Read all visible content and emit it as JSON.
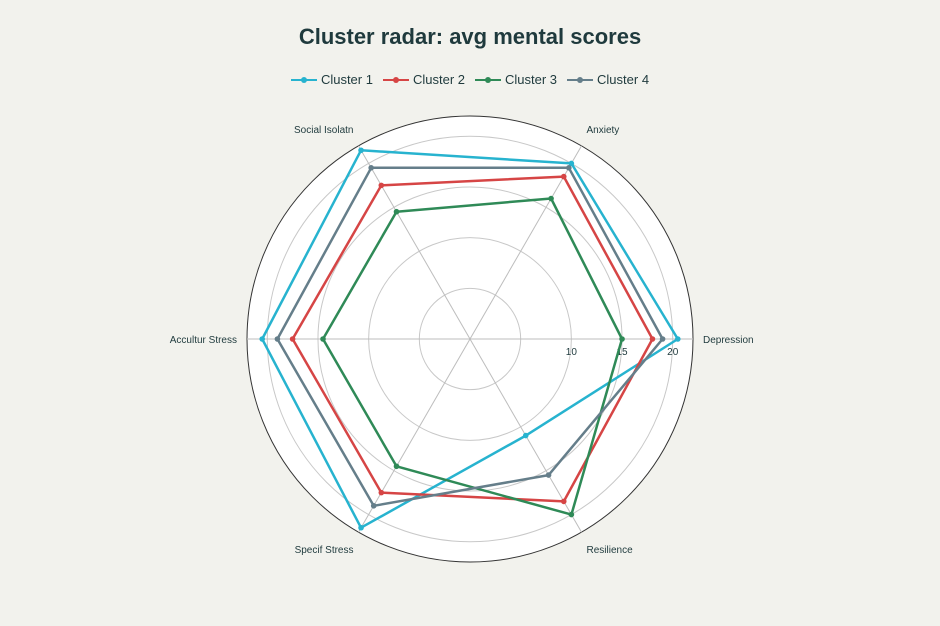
{
  "chart_data": {
    "type": "radar",
    "title": "Cluster radar: avg mental scores",
    "axes": [
      "Depression",
      "Anxiety",
      "Social Isolatn",
      "Accultur Stress",
      "Specif Stress",
      "Resilience"
    ],
    "radial_range": [
      0,
      22
    ],
    "radial_ticks": [
      10,
      15,
      20
    ],
    "legend_position": "top",
    "series": [
      {
        "name": "Cluster 1",
        "color": "#27b3cf",
        "values": [
          20.5,
          20.0,
          21.5,
          20.5,
          21.5,
          11.0
        ]
      },
      {
        "name": "Cluster 2",
        "color": "#d64545",
        "values": [
          18.0,
          18.5,
          17.5,
          17.5,
          17.5,
          18.5
        ]
      },
      {
        "name": "Cluster 3",
        "color": "#2f8a57",
        "values": [
          15.0,
          16.0,
          14.5,
          14.5,
          14.5,
          20.0
        ]
      },
      {
        "name": "Cluster 4",
        "color": "#657e8a",
        "values": [
          19.0,
          19.5,
          19.5,
          19.0,
          19.0,
          15.5
        ]
      }
    ]
  }
}
